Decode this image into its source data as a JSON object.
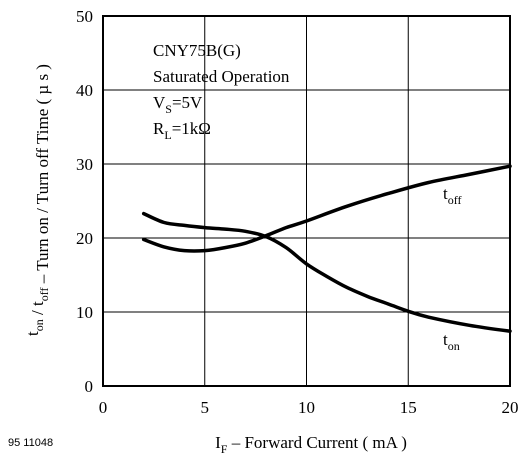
{
  "figure_code": "95 11048",
  "chart_data": {
    "type": "line",
    "xlabel": {
      "main": "I",
      "sub": "F",
      "rest": " – Forward Current ( mA )"
    },
    "ylabel": {
      "parts": [
        {
          "t": "t",
          "s": "on"
        },
        {
          "t": " / t",
          "s": "off"
        },
        {
          "t": "  – Turn on / Turn off Time ( µ s )",
          "s": ""
        }
      ]
    },
    "xlim": [
      0,
      20
    ],
    "ylim": [
      0,
      50
    ],
    "xticks": [
      0,
      5,
      10,
      15,
      20
    ],
    "yticks": [
      0,
      10,
      20,
      30,
      40,
      50
    ],
    "grid": true,
    "annotation": {
      "line1": "CNY75B(G)",
      "line2": "Saturated Operation",
      "line3_main": "V",
      "line3_sub": "S",
      "line3_rest": "=5V",
      "line4_main": "R",
      "line4_sub": "L",
      "line4_rest": "=1kΩ"
    },
    "series": [
      {
        "name": "t",
        "name_sub": "off",
        "x": [
          2,
          3,
          4,
          5,
          6,
          7,
          8,
          9,
          10,
          12,
          14,
          16,
          18,
          20
        ],
        "y": [
          19.8,
          18.8,
          18.3,
          18.3,
          18.7,
          19.3,
          20.3,
          21.4,
          22.3,
          24.3,
          26.0,
          27.5,
          28.6,
          29.7
        ]
      },
      {
        "name": "t",
        "name_sub": "on",
        "x": [
          2,
          3,
          4,
          5,
          6,
          7,
          8,
          9,
          10,
          11,
          12,
          13,
          14,
          15,
          16,
          18,
          20
        ],
        "y": [
          23.3,
          22.1,
          21.7,
          21.4,
          21.2,
          20.9,
          20.2,
          18.7,
          16.5,
          14.8,
          13.3,
          12.1,
          11.1,
          10.1,
          9.3,
          8.2,
          7.4
        ]
      }
    ]
  }
}
